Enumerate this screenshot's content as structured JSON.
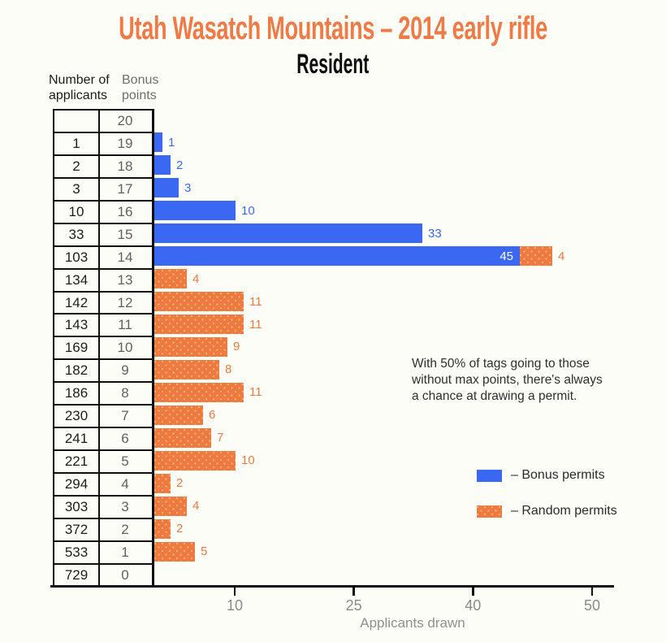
{
  "page": {
    "background": "#fdfdf8"
  },
  "header": {
    "title": "Utah Wasatch Mountains – 2014 early rifle",
    "subtitle": "Resident"
  },
  "table_headers": {
    "applicants": [
      "Number of",
      "applicants"
    ],
    "points": [
      "Bonus",
      "points"
    ]
  },
  "colors": {
    "title_orange": "#f07a46",
    "bonus_blue": "#3a68f2",
    "random_orange": "#ee7a3e",
    "axis_black": "#0f0f0f",
    "background": "#fdfdf8"
  },
  "chart_data": {
    "type": "bar",
    "orientation": "horizontal",
    "title": "Utah Wasatch Mountains – 2014 early rifle (Resident)",
    "xlabel": "Applicants drawn",
    "ylabel": "Bonus points",
    "x_ticks": [
      10,
      25,
      40,
      50
    ],
    "grid": false,
    "legend_position": "right",
    "series": [
      {
        "name": "Bonus permits",
        "color": "#3a68f2"
      },
      {
        "name": "Random permits",
        "color": "#ee7a3e"
      }
    ],
    "rows": [
      {
        "points": 20,
        "applicants": "",
        "bonus": null,
        "random": null
      },
      {
        "points": 19,
        "applicants": "1",
        "bonus": 1,
        "random": null
      },
      {
        "points": 18,
        "applicants": "2",
        "bonus": 2,
        "random": null
      },
      {
        "points": 17,
        "applicants": "3",
        "bonus": 3,
        "random": null
      },
      {
        "points": 16,
        "applicants": "10",
        "bonus": 10,
        "random": null
      },
      {
        "points": 15,
        "applicants": "33",
        "bonus": 33,
        "random": null
      },
      {
        "points": 14,
        "applicants": "103",
        "bonus": 45,
        "random": 4
      },
      {
        "points": 13,
        "applicants": "134",
        "bonus": null,
        "random": 4
      },
      {
        "points": 12,
        "applicants": "142",
        "bonus": null,
        "random": 11
      },
      {
        "points": 11,
        "applicants": "143",
        "bonus": null,
        "random": 11
      },
      {
        "points": 10,
        "applicants": "169",
        "bonus": null,
        "random": 9
      },
      {
        "points": 9,
        "applicants": "182",
        "bonus": null,
        "random": 8
      },
      {
        "points": 8,
        "applicants": "186",
        "bonus": null,
        "random": 11
      },
      {
        "points": 7,
        "applicants": "230",
        "bonus": null,
        "random": 6
      },
      {
        "points": 6,
        "applicants": "241",
        "bonus": null,
        "random": 7
      },
      {
        "points": 5,
        "applicants": "221",
        "bonus": null,
        "random": 10
      },
      {
        "points": 4,
        "applicants": "294",
        "bonus": null,
        "random": 2
      },
      {
        "points": 3,
        "applicants": "303",
        "bonus": null,
        "random": 4
      },
      {
        "points": 2,
        "applicants": "372",
        "bonus": null,
        "random": 2
      },
      {
        "points": 1,
        "applicants": "533",
        "bonus": null,
        "random": 5
      },
      {
        "points": 0,
        "applicants": "729",
        "bonus": null,
        "random": null
      }
    ]
  },
  "annotation": {
    "lines": [
      "With 50% of tags going to those",
      "without max points, there's always",
      "a chance at drawing a permit."
    ]
  },
  "legend": {
    "items": [
      {
        "label": "– Bonus permits",
        "key": "bonus"
      },
      {
        "label": "– Random permits",
        "key": "random"
      }
    ]
  },
  "axis": {
    "label": "Applicants drawn",
    "tick_labels": [
      "10",
      "25",
      "40",
      "50"
    ]
  }
}
